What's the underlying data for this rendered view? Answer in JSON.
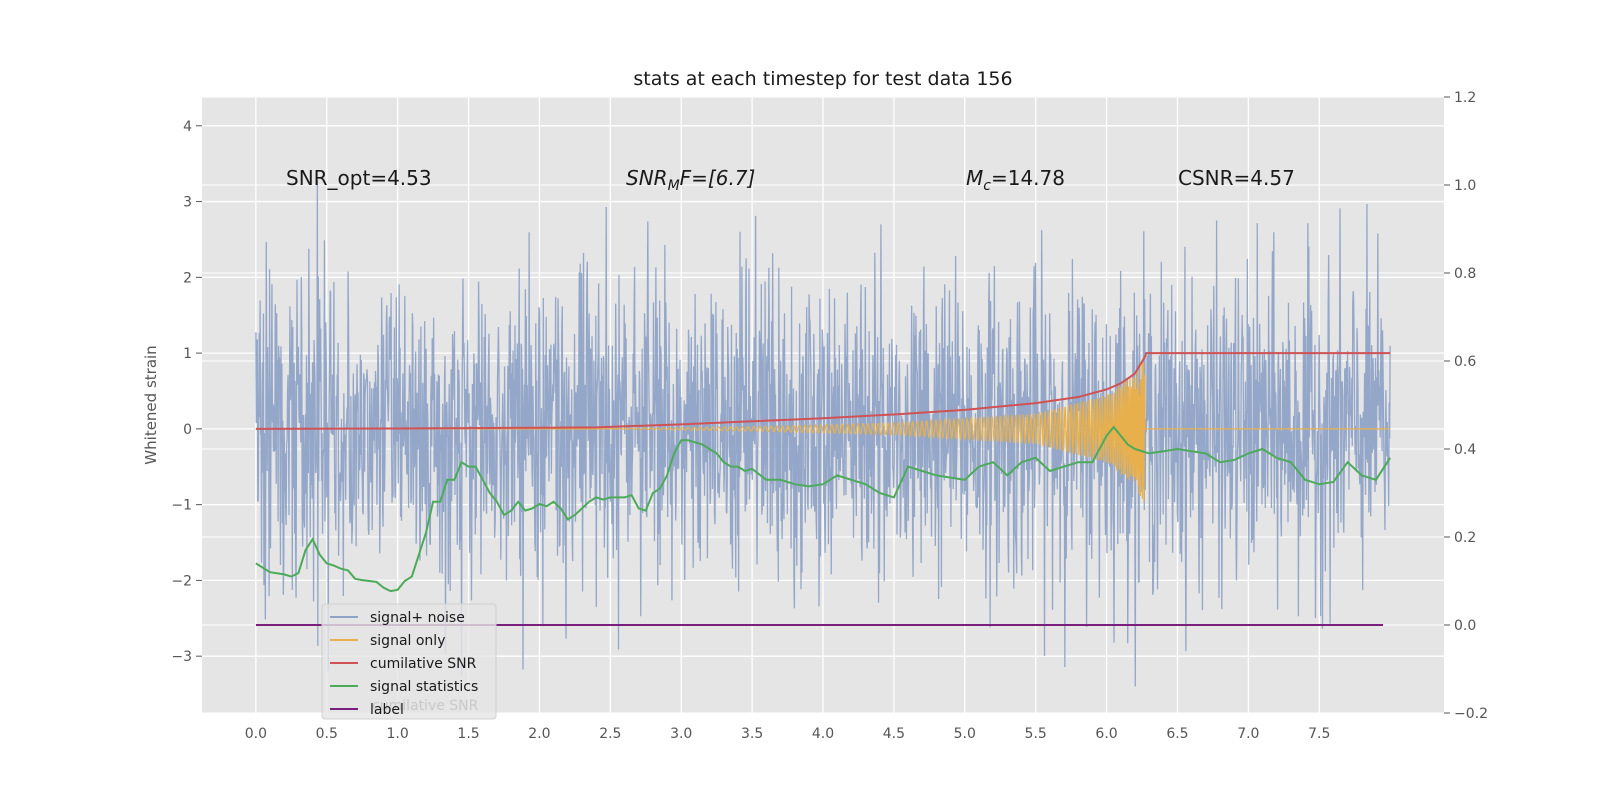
{
  "chart_data": {
    "type": "line",
    "title": "stats at each timestep for test data 156",
    "ylabel": "Whitened strain",
    "xlim": [
      -0.38,
      8.38
    ],
    "ylim": [
      -3.75,
      4.38
    ],
    "y2lim": [
      -0.2,
      1.2
    ],
    "xticks": [
      0.0,
      0.5,
      1.0,
      1.5,
      2.0,
      2.5,
      3.0,
      3.5,
      4.0,
      4.5,
      5.0,
      5.5,
      6.0,
      6.5,
      7.0,
      7.5
    ],
    "xtick_labels": [
      "0.0",
      "0.5",
      "1.0",
      "1.5",
      "2.0",
      "2.5",
      "3.0",
      "3.5",
      "4.0",
      "4.5",
      "5.0",
      "5.5",
      "6.0",
      "6.5",
      "7.0",
      "7.5"
    ],
    "yticks": [
      -3,
      -2,
      -1,
      0,
      1,
      2,
      3,
      4
    ],
    "ytick_labels": [
      "−3",
      "−2",
      "−1",
      "0",
      "1",
      "2",
      "3",
      "4"
    ],
    "y2ticks": [
      -0.2,
      0.0,
      0.2,
      0.4,
      0.6,
      0.8,
      1.0,
      1.2
    ],
    "y2tick_labels": [
      "−0.2",
      "0.0",
      "0.2",
      "0.4",
      "0.6",
      "0.8",
      "1.0",
      "1.2"
    ],
    "grid": true,
    "legend_position": "lower-left",
    "annotations": {
      "snr_opt": "SNR_opt=4.53",
      "snr_mf_sym": "SNR",
      "snr_mf_sub": "M",
      "snr_mf_rest": "F=[6.7]",
      "mc_sym": "M",
      "mc_sub": "c",
      "mc_rest": "=14.78",
      "csnr": "CSNR=4.57"
    },
    "series": [
      {
        "name": "signal+ noise",
        "color": "#8fa3c7",
        "axis": "left",
        "kind": "noise",
        "x_range": [
          0.0,
          8.0
        ],
        "envelope_approx": [
          -3.4,
          4.05
        ]
      },
      {
        "name": "signal only",
        "color": "#e8b04d",
        "axis": "left",
        "kind": "chirp",
        "x_range": [
          0.0,
          8.0
        ],
        "merger_x": 6.27,
        "amplitude_points": [
          [
            2.4,
            0.0
          ],
          [
            3.5,
            0.03
          ],
          [
            4.5,
            0.08
          ],
          [
            5.5,
            0.2
          ],
          [
            6.0,
            0.45
          ],
          [
            6.2,
            0.75
          ],
          [
            6.27,
            1.0
          ]
        ]
      },
      {
        "name": "cumilative SNR",
        "color": "#d05254",
        "axis": "left",
        "x": [
          0.0,
          1.0,
          2.0,
          2.4,
          3.0,
          3.5,
          4.0,
          4.5,
          5.0,
          5.5,
          5.8,
          6.0,
          6.1,
          6.2,
          6.27,
          6.28,
          8.0
        ],
        "values": [
          0.0,
          0.005,
          0.015,
          0.02,
          0.06,
          0.1,
          0.14,
          0.19,
          0.25,
          0.34,
          0.42,
          0.52,
          0.6,
          0.73,
          0.95,
          1.0,
          1.0
        ]
      },
      {
        "name": "signal statistics",
        "color": "#4caa5a",
        "axis": "right",
        "x": [
          0.0,
          0.1,
          0.2,
          0.25,
          0.3,
          0.35,
          0.4,
          0.45,
          0.5,
          0.55,
          0.6,
          0.65,
          0.7,
          0.75,
          0.8,
          0.85,
          0.9,
          0.95,
          1.0,
          1.05,
          1.1,
          1.15,
          1.2,
          1.25,
          1.3,
          1.35,
          1.4,
          1.45,
          1.5,
          1.55,
          1.6,
          1.65,
          1.7,
          1.75,
          1.8,
          1.85,
          1.9,
          1.95,
          2.0,
          2.05,
          2.1,
          2.15,
          2.2,
          2.25,
          2.3,
          2.35,
          2.4,
          2.45,
          2.5,
          2.55,
          2.6,
          2.65,
          2.7,
          2.75,
          2.8,
          2.85,
          2.9,
          2.95,
          3.0,
          3.05,
          3.1,
          3.15,
          3.2,
          3.25,
          3.3,
          3.35,
          3.4,
          3.45,
          3.5,
          3.6,
          3.7,
          3.8,
          3.9,
          4.0,
          4.1,
          4.2,
          4.3,
          4.4,
          4.5,
          4.6,
          4.7,
          4.8,
          4.9,
          5.0,
          5.1,
          5.2,
          5.3,
          5.4,
          5.5,
          5.6,
          5.7,
          5.8,
          5.9,
          6.0,
          6.05,
          6.1,
          6.15,
          6.2,
          6.3,
          6.4,
          6.5,
          6.6,
          6.7,
          6.8,
          6.9,
          7.0,
          7.1,
          7.2,
          7.3,
          7.4,
          7.5,
          7.6,
          7.7,
          7.8,
          7.9,
          8.0
        ],
        "values": [
          0.14,
          0.12,
          0.115,
          0.11,
          0.118,
          0.17,
          0.195,
          0.16,
          0.14,
          0.135,
          0.128,
          0.124,
          0.105,
          0.102,
          0.1,
          0.098,
          0.085,
          0.077,
          0.08,
          0.1,
          0.11,
          0.16,
          0.21,
          0.28,
          0.28,
          0.33,
          0.33,
          0.37,
          0.36,
          0.36,
          0.33,
          0.3,
          0.28,
          0.25,
          0.26,
          0.28,
          0.26,
          0.265,
          0.275,
          0.27,
          0.28,
          0.265,
          0.24,
          0.25,
          0.265,
          0.28,
          0.29,
          0.285,
          0.29,
          0.29,
          0.29,
          0.295,
          0.265,
          0.26,
          0.3,
          0.31,
          0.34,
          0.39,
          0.42,
          0.42,
          0.415,
          0.41,
          0.4,
          0.39,
          0.37,
          0.36,
          0.36,
          0.35,
          0.355,
          0.33,
          0.33,
          0.32,
          0.315,
          0.32,
          0.34,
          0.33,
          0.32,
          0.3,
          0.29,
          0.36,
          0.35,
          0.34,
          0.335,
          0.33,
          0.36,
          0.37,
          0.34,
          0.37,
          0.38,
          0.35,
          0.36,
          0.37,
          0.37,
          0.43,
          0.45,
          0.43,
          0.41,
          0.4,
          0.39,
          0.395,
          0.4,
          0.395,
          0.39,
          0.37,
          0.375,
          0.39,
          0.4,
          0.38,
          0.37,
          0.33,
          0.32,
          0.325,
          0.37,
          0.34,
          0.33,
          0.38
        ],
        "values_note": ""
      },
      {
        "name": "label",
        "color": "#7b1f7c",
        "axis": "right",
        "x": [
          0.0,
          7.95
        ],
        "values": [
          0.0,
          0.0
        ]
      }
    ],
    "legend": {
      "items": [
        "signal+ noise",
        "signal only",
        "cumilative SNR",
        "signal statistics",
        "label"
      ],
      "ghost_text": "cumilative SNR"
    }
  }
}
